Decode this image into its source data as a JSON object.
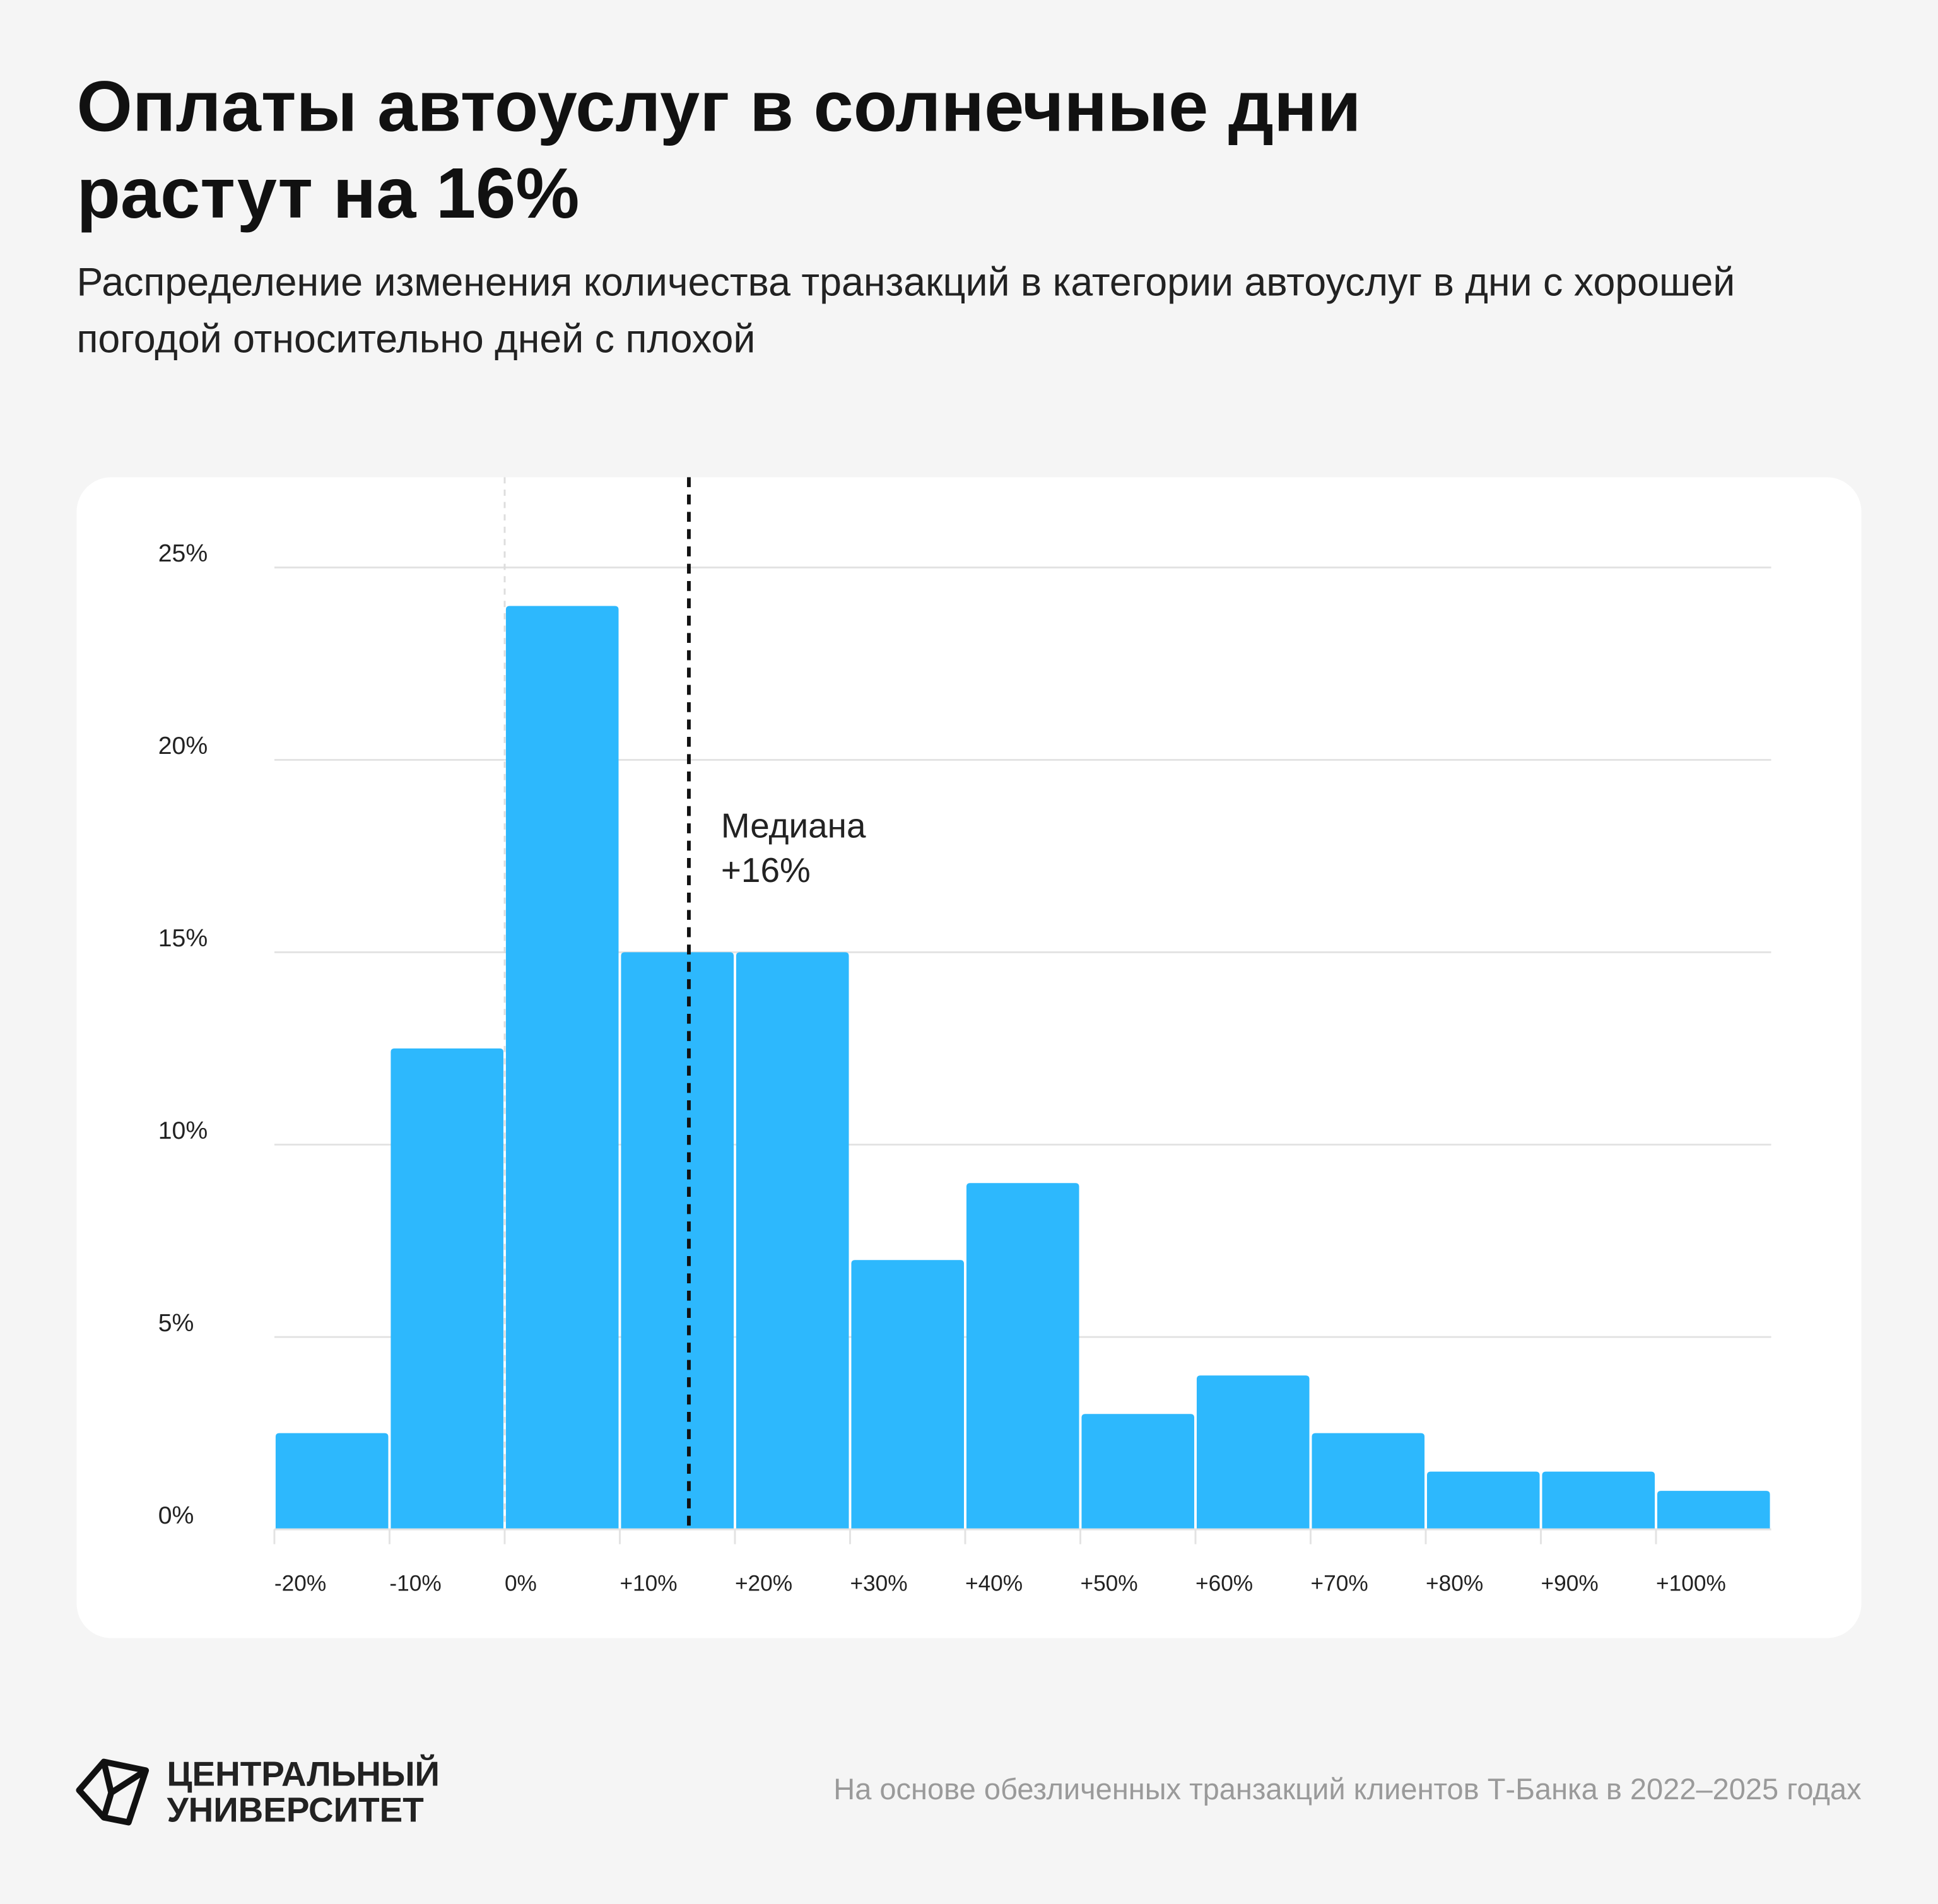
{
  "header": {
    "title": "Оплаты автоуслуг в солнечные дни растут на 16%",
    "subtitle": "Распределение изменения количества транзакций в категории автоуслуг в дни с хорошей погодой относительно дней с плохой"
  },
  "chart_data": {
    "type": "histogram",
    "bins": [
      -20,
      -10,
      0,
      10,
      20,
      30,
      40,
      50,
      60,
      70,
      80,
      90,
      100,
      110
    ],
    "values": [
      2.5,
      12.5,
      24,
      15,
      15,
      7,
      9,
      3,
      4,
      2.5,
      1.5,
      1.5,
      1
    ],
    "color": "#2db8fd",
    "xlim": [
      -20,
      110
    ],
    "xticks": [
      {
        "value": -20,
        "label": "-20%"
      },
      {
        "value": -10,
        "label": "-10%"
      },
      {
        "value": 0,
        "label": "0%"
      },
      {
        "value": 10,
        "label": "+10%"
      },
      {
        "value": 20,
        "label": "+20%"
      },
      {
        "value": 30,
        "label": "+30%"
      },
      {
        "value": 40,
        "label": "+40%"
      },
      {
        "value": 50,
        "label": "+50%"
      },
      {
        "value": 60,
        "label": "+60%"
      },
      {
        "value": 70,
        "label": "+70%"
      },
      {
        "value": 80,
        "label": "+80%"
      },
      {
        "value": 90,
        "label": "+90%"
      },
      {
        "value": 100,
        "label": "+100%"
      }
    ],
    "ylim": [
      0,
      25
    ],
    "yticks": [
      {
        "value": 0,
        "label": "0%"
      },
      {
        "value": 5,
        "label": "5%"
      },
      {
        "value": 10,
        "label": "10%"
      },
      {
        "value": 15,
        "label": "15%"
      },
      {
        "value": 20,
        "label": "20%"
      },
      {
        "value": 25,
        "label": "25%"
      }
    ],
    "grid": true,
    "median": {
      "name": "Медиана",
      "value": 16,
      "label": "+16%"
    }
  },
  "footer": {
    "logo": [
      "ЦЕНТРАЛЬНЫЙ",
      "УНИВЕРСИТЕТ"
    ],
    "source": "На основе обезличенных транзакций клиентов Т-Банка в 2022–2025 годах"
  }
}
